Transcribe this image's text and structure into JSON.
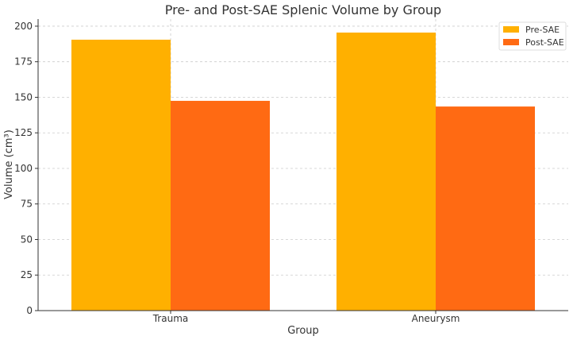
{
  "chart_data": {
    "type": "bar",
    "title": "Pre- and Post-SAE Splenic Volume by Group",
    "xlabel": "Group",
    "ylabel": "Volume (cm³)",
    "categories": [
      "Trauma",
      "Aneurysm"
    ],
    "series": [
      {
        "name": "Pre-SAE",
        "values": [
          190.5,
          195.5
        ],
        "color": "#FFB000"
      },
      {
        "name": "Post-SAE",
        "values": [
          147.5,
          143.5
        ],
        "color": "#FF6A13"
      }
    ],
    "ylim": [
      0,
      205
    ],
    "yticks": [
      "0",
      "25",
      "50",
      "75",
      "100",
      "125",
      "150",
      "175",
      "200"
    ],
    "grid": true,
    "legend_position": "top-right"
  }
}
